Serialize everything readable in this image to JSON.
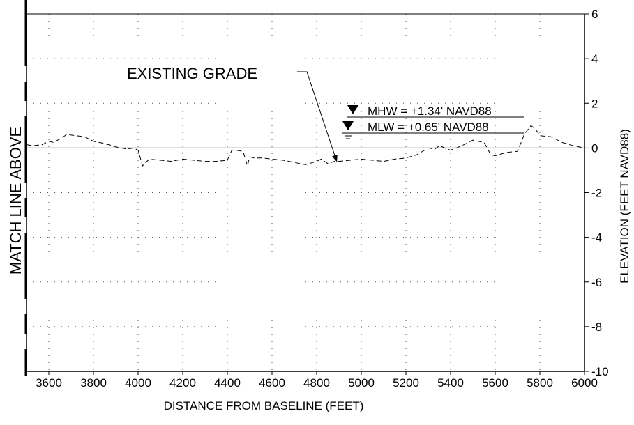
{
  "chart_data": {
    "type": "line",
    "title": "",
    "xlabel": "DISTANCE FROM BASELINE (FEET)",
    "ylabel": "ELEVATION (FEET NAVD88)",
    "xlim": [
      3500,
      6000
    ],
    "ylim": [
      -10,
      6
    ],
    "x_ticks": [
      3600,
      3800,
      4000,
      4200,
      4400,
      4600,
      4800,
      5000,
      5200,
      5400,
      5600,
      5800,
      6000
    ],
    "y_ticks": [
      6,
      4,
      2,
      0,
      -2,
      -4,
      -6,
      -8,
      -10
    ],
    "grid": "dotted",
    "side_label": "MATCH LINE ABOVE",
    "series": [
      {
        "name": "EXISTING GRADE",
        "style": "dashed",
        "x": [
          3500,
          3530,
          3570,
          3600,
          3620,
          3650,
          3680,
          3720,
          3760,
          3800,
          3850,
          3900,
          3950,
          3980,
          4000,
          4020,
          4050,
          4100,
          4150,
          4200,
          4250,
          4300,
          4350,
          4400,
          4420,
          4440,
          4470,
          4490,
          4500,
          4520,
          4560,
          4600,
          4650,
          4700,
          4750,
          4800,
          4820,
          4850,
          4880,
          4900,
          4950,
          5000,
          5050,
          5100,
          5150,
          5200,
          5250,
          5300,
          5330,
          5350,
          5400,
          5450,
          5500,
          5550,
          5580,
          5600,
          5650,
          5700,
          5730,
          5760,
          5780,
          5800,
          5850,
          5900,
          5950,
          6000
        ],
        "y": [
          0.15,
          0.1,
          0.15,
          0.3,
          0.25,
          0.4,
          0.6,
          0.55,
          0.5,
          0.3,
          0.2,
          0.05,
          -0.05,
          0.0,
          -0.1,
          -0.8,
          -0.5,
          -0.55,
          -0.6,
          -0.5,
          -0.55,
          -0.6,
          -0.6,
          -0.55,
          -0.1,
          -0.1,
          -0.15,
          -0.8,
          -0.4,
          -0.45,
          -0.45,
          -0.5,
          -0.55,
          -0.65,
          -0.75,
          -0.6,
          -0.5,
          -0.7,
          -0.6,
          -0.6,
          -0.55,
          -0.5,
          -0.55,
          -0.6,
          -0.5,
          -0.45,
          -0.3,
          0.0,
          -0.05,
          0.1,
          -0.1,
          0.1,
          0.35,
          0.25,
          -0.3,
          -0.35,
          -0.2,
          -0.15,
          0.6,
          1.0,
          0.85,
          0.55,
          0.5,
          0.25,
          0.1,
          0.0
        ]
      }
    ],
    "annotations": {
      "grade_label": "EXISTING GRADE",
      "grade_arrow_target": {
        "x": 4890,
        "y": -0.6
      },
      "mhw_label": "MHW = +1.34' NAVD88",
      "mhw_value": 1.34,
      "mlw_label": "MLW = +0.65' NAVD88",
      "mlw_value": 0.65
    }
  }
}
